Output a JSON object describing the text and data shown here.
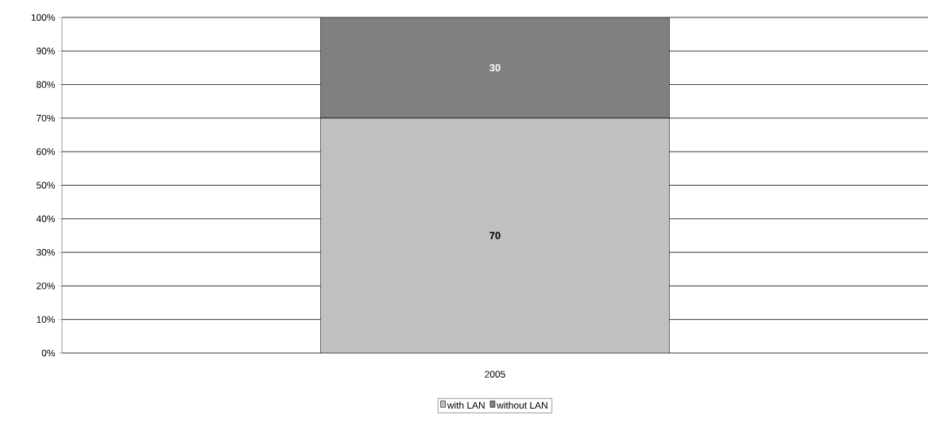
{
  "chart_data": {
    "type": "bar",
    "stacked": true,
    "categories": [
      "2005"
    ],
    "series": [
      {
        "name": "with LAN",
        "color": "#c0c0c0",
        "values": [
          70
        ]
      },
      {
        "name": "without LAN",
        "color": "#808080",
        "values": [
          30
        ]
      }
    ],
    "ylim": [
      0,
      100
    ],
    "yticks": [
      {
        "value": 0,
        "label": "0%"
      },
      {
        "value": 10,
        "label": "10%"
      },
      {
        "value": 20,
        "label": "20%"
      },
      {
        "value": 30,
        "label": "30%"
      },
      {
        "value": 40,
        "label": "40%"
      },
      {
        "value": 50,
        "label": "50%"
      },
      {
        "value": 60,
        "label": "60%"
      },
      {
        "value": 70,
        "label": "70%"
      },
      {
        "value": 80,
        "label": "80%"
      },
      {
        "value": 90,
        "label": "90%"
      },
      {
        "value": 100,
        "label": "100%"
      }
    ],
    "grid": "y",
    "legend": "bottom",
    "data_labels": true
  }
}
